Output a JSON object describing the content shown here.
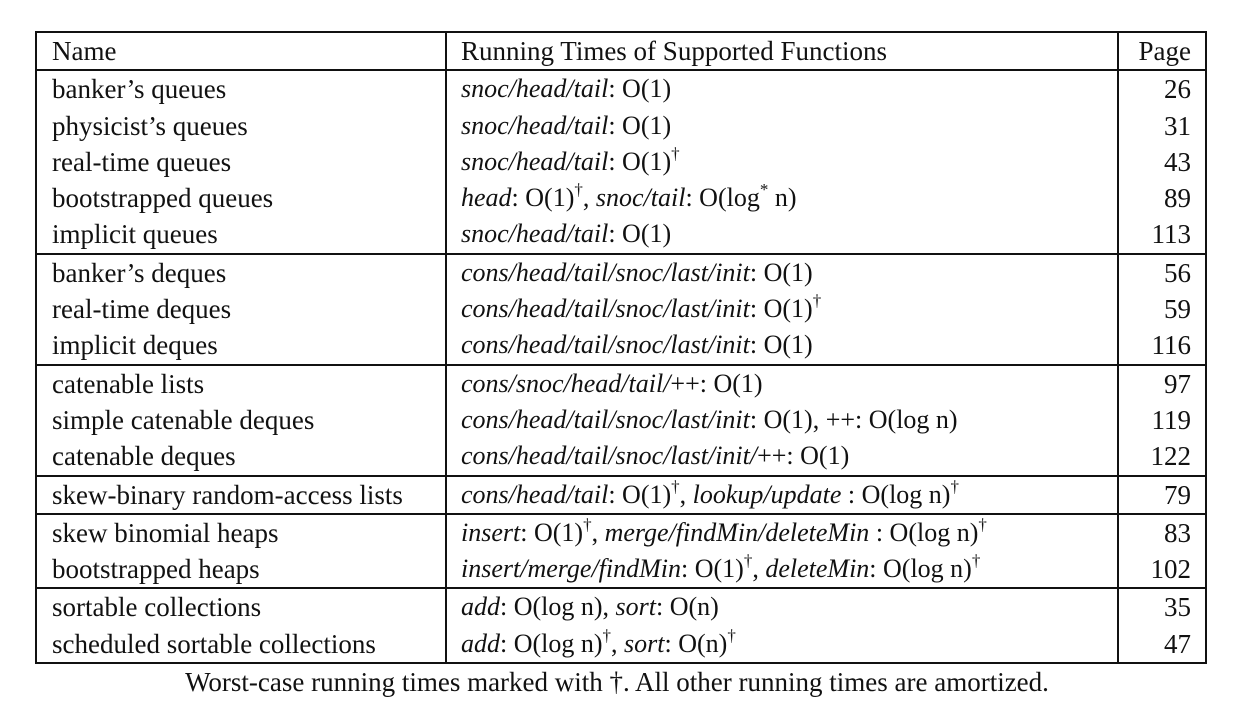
{
  "table": {
    "headers": {
      "name": "Name",
      "functions": "Running Times of Supported Functions",
      "page": "Page"
    },
    "groups": [
      {
        "rows": [
          {
            "name": "banker’s queues",
            "functions": [
              {
                "t": "snoc/head/tail",
                "i": true
              },
              {
                "t": ": O(1)"
              }
            ],
            "page": "26"
          },
          {
            "name": "physicist’s queues",
            "functions": [
              {
                "t": "snoc/head/tail",
                "i": true
              },
              {
                "t": ": O(1)"
              }
            ],
            "page": "31"
          },
          {
            "name": "real-time queues",
            "functions": [
              {
                "t": "snoc/head/tail",
                "i": true
              },
              {
                "t": ": O(1)"
              },
              {
                "t": "†",
                "s": true
              }
            ],
            "page": "43"
          },
          {
            "name": "bootstrapped queues",
            "functions": [
              {
                "t": "head",
                "i": true
              },
              {
                "t": ": O(1)"
              },
              {
                "t": "†",
                "s": true
              },
              {
                "t": ", "
              },
              {
                "t": "snoc/tail",
                "i": true
              },
              {
                "t": ": O(log"
              },
              {
                "t": "*",
                "s": true
              },
              {
                "t": " n)"
              }
            ],
            "page": "89"
          },
          {
            "name": "implicit queues",
            "functions": [
              {
                "t": "snoc/head/tail",
                "i": true
              },
              {
                "t": ": O(1)"
              }
            ],
            "page": "113"
          }
        ]
      },
      {
        "rows": [
          {
            "name": "banker’s deques",
            "functions": [
              {
                "t": "cons/head/tail/snoc/last/init",
                "i": true
              },
              {
                "t": ": O(1)"
              }
            ],
            "page": "56"
          },
          {
            "name": "real-time deques",
            "functions": [
              {
                "t": "cons/head/tail/snoc/last/init",
                "i": true
              },
              {
                "t": ": O(1)"
              },
              {
                "t": "†",
                "s": true
              }
            ],
            "page": "59"
          },
          {
            "name": "implicit deques",
            "functions": [
              {
                "t": "cons/head/tail/snoc/last/init",
                "i": true
              },
              {
                "t": ": O(1)"
              }
            ],
            "page": "116"
          }
        ]
      },
      {
        "rows": [
          {
            "name": "catenable lists",
            "functions": [
              {
                "t": "cons/snoc/head/tail/",
                "i": true
              },
              {
                "t": "++: O(1)"
              }
            ],
            "page": "97"
          },
          {
            "name": "simple catenable deques",
            "functions": [
              {
                "t": "cons/head/tail/snoc/last/init",
                "i": true
              },
              {
                "t": ": O(1), ++: O(log n)"
              }
            ],
            "page": "119"
          },
          {
            "name": "catenable deques",
            "functions": [
              {
                "t": "cons/head/tail/snoc/last/init/",
                "i": true
              },
              {
                "t": "++: O(1)"
              }
            ],
            "page": "122"
          }
        ]
      },
      {
        "rows": [
          {
            "name": "skew-binary random-access lists",
            "functions": [
              {
                "t": "cons/head/tail",
                "i": true
              },
              {
                "t": ": O(1)"
              },
              {
                "t": "†",
                "s": true
              },
              {
                "t": ", "
              },
              {
                "t": "lookup/update",
                "i": true
              },
              {
                "t": " : O(log n)"
              },
              {
                "t": "†",
                "s": true
              }
            ],
            "page": "79"
          }
        ]
      },
      {
        "rows": [
          {
            "name": "skew binomial heaps",
            "functions": [
              {
                "t": "insert",
                "i": true
              },
              {
                "t": ": O(1)"
              },
              {
                "t": "†",
                "s": true
              },
              {
                "t": ", "
              },
              {
                "t": "merge/findMin/deleteMin",
                "i": true
              },
              {
                "t": " : O(log n)"
              },
              {
                "t": "†",
                "s": true
              }
            ],
            "page": "83"
          },
          {
            "name": "bootstrapped heaps",
            "functions": [
              {
                "t": "insert/merge/findMin",
                "i": true
              },
              {
                "t": ": O(1)"
              },
              {
                "t": "†",
                "s": true
              },
              {
                "t": ", "
              },
              {
                "t": "deleteMin",
                "i": true
              },
              {
                "t": ": O(log n)"
              },
              {
                "t": "†",
                "s": true
              }
            ],
            "page": "102"
          }
        ]
      },
      {
        "rows": [
          {
            "name": "sortable collections",
            "functions": [
              {
                "t": "add",
                "i": true
              },
              {
                "t": ": O(log n), "
              },
              {
                "t": "sort",
                "i": true
              },
              {
                "t": ": O(n)"
              }
            ],
            "page": "35"
          },
          {
            "name": "scheduled sortable collections",
            "functions": [
              {
                "t": "add",
                "i": true
              },
              {
                "t": ": O(log n)"
              },
              {
                "t": "†",
                "s": true
              },
              {
                "t": ", "
              },
              {
                "t": "sort",
                "i": true
              },
              {
                "t": ": O(n)"
              },
              {
                "t": "†",
                "s": true
              }
            ],
            "page": "47"
          }
        ]
      }
    ]
  },
  "caption": "Worst-case running times marked with †. All other running times are amortized."
}
